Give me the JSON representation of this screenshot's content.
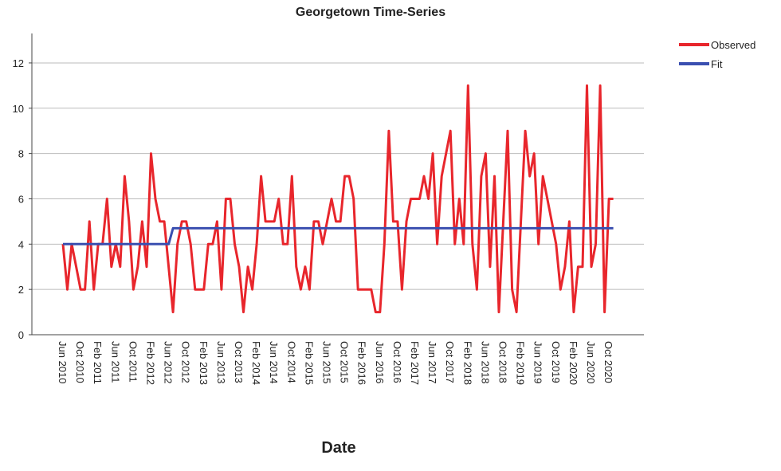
{
  "chart_data": {
    "type": "line",
    "title": "Georgetown Time-Series",
    "x_label": "Date",
    "categories": [
      "Jun 2010",
      null,
      null,
      null,
      "Oct 2010",
      null,
      null,
      null,
      "Feb 2011",
      null,
      null,
      null,
      "Jun 2011",
      null,
      null,
      null,
      "Oct 2011",
      null,
      null,
      null,
      "Feb 2012",
      null,
      null,
      null,
      "Jun 2012",
      null,
      null,
      null,
      "Oct 2012",
      null,
      null,
      null,
      "Feb 2013",
      null,
      null,
      null,
      "Jun 2013",
      null,
      null,
      null,
      "Oct 2013",
      null,
      null,
      null,
      "Feb 2014",
      null,
      null,
      null,
      "Jun 2014",
      null,
      null,
      null,
      "Oct 2014",
      null,
      null,
      null,
      "Feb 2015",
      null,
      null,
      null,
      "Jun 2015",
      null,
      null,
      null,
      "Oct 2015",
      null,
      null,
      null,
      "Feb 2016",
      null,
      null,
      null,
      "Jun 2016",
      null,
      null,
      null,
      "Oct 2016",
      null,
      null,
      null,
      "Feb 2017",
      null,
      null,
      null,
      "Jun 2017",
      null,
      null,
      null,
      "Oct 2017",
      null,
      null,
      null,
      "Feb 2018",
      null,
      null,
      null,
      "Jun 2018",
      null,
      null,
      null,
      "Oct 2018",
      null,
      null,
      null,
      "Feb 2019",
      null,
      null,
      null,
      "Jun 2019",
      null,
      null,
      null,
      "Oct 2019",
      null,
      null,
      null,
      "Feb 2020",
      null,
      null,
      null,
      "Jun 2020",
      null,
      null,
      null,
      "Oct 2020",
      null
    ],
    "series": [
      {
        "name": "Observed",
        "color": "#e8262c",
        "values": [
          4,
          2,
          4,
          3,
          2,
          2,
          5,
          2,
          4,
          4,
          6,
          3,
          4,
          3,
          7,
          5,
          2,
          3,
          5,
          3,
          8,
          6,
          5,
          5,
          3,
          1,
          4,
          5,
          5,
          4,
          2,
          2,
          2,
          4,
          4,
          5,
          2,
          6,
          6,
          4,
          3,
          1,
          3,
          2,
          4,
          7,
          5,
          5,
          5,
          6,
          4,
          4,
          7,
          3,
          2,
          3,
          2,
          5,
          5,
          4,
          5,
          6,
          5,
          5,
          7,
          7,
          6,
          2,
          2,
          2,
          2,
          1,
          1,
          4,
          9,
          5,
          5,
          2,
          5,
          6,
          6,
          6,
          7,
          6,
          8,
          4,
          7,
          8,
          9,
          4,
          6,
          4,
          11,
          4,
          2,
          7,
          8,
          3,
          7,
          1,
          5,
          9,
          2,
          1,
          5,
          9,
          7,
          8,
          4,
          7,
          6,
          5,
          4,
          2,
          3,
          5,
          1,
          3,
          3,
          11,
          3,
          4,
          11,
          1,
          6,
          6
        ]
      },
      {
        "name": "Fit",
        "color": "#3a4fb0",
        "values": [
          4,
          4,
          4,
          4,
          4,
          4,
          4,
          4,
          4,
          4,
          4,
          4,
          4,
          4,
          4,
          4,
          4,
          4,
          4,
          4,
          4,
          4,
          4,
          4,
          4,
          4.7,
          4.7,
          4.7,
          4.7,
          4.7,
          4.7,
          4.7,
          4.7,
          4.7,
          4.7,
          4.7,
          4.7,
          4.7,
          4.7,
          4.7,
          4.7,
          4.7,
          4.7,
          4.7,
          4.7,
          4.7,
          4.7,
          4.7,
          4.7,
          4.7,
          4.7,
          4.7,
          4.7,
          4.7,
          4.7,
          4.7,
          4.7,
          4.7,
          4.7,
          4.7,
          4.7,
          4.7,
          4.7,
          4.7,
          4.7,
          4.7,
          4.7,
          4.7,
          4.7,
          4.7,
          4.7,
          4.7,
          4.7,
          4.7,
          4.7,
          4.7,
          4.7,
          4.7,
          4.7,
          4.7,
          4.7,
          4.7,
          4.7,
          4.7,
          4.7,
          4.7,
          4.7,
          4.7,
          4.7,
          4.7,
          4.7,
          4.7,
          4.7,
          4.7,
          4.7,
          4.7,
          4.7,
          4.7,
          4.7,
          4.7,
          4.7,
          4.7,
          4.7,
          4.7,
          4.7,
          4.7,
          4.7,
          4.7,
          4.7,
          4.7,
          4.7,
          4.7,
          4.7,
          4.7,
          4.7,
          4.7,
          4.7,
          4.7,
          4.7,
          4.7,
          4.7,
          4.7,
          4.7,
          4.7,
          4.7,
          4.7
        ]
      }
    ],
    "ylim": [
      0,
      13.3
    ],
    "yticks": [
      0,
      2,
      4,
      6,
      8,
      10,
      12
    ],
    "grid": true
  }
}
